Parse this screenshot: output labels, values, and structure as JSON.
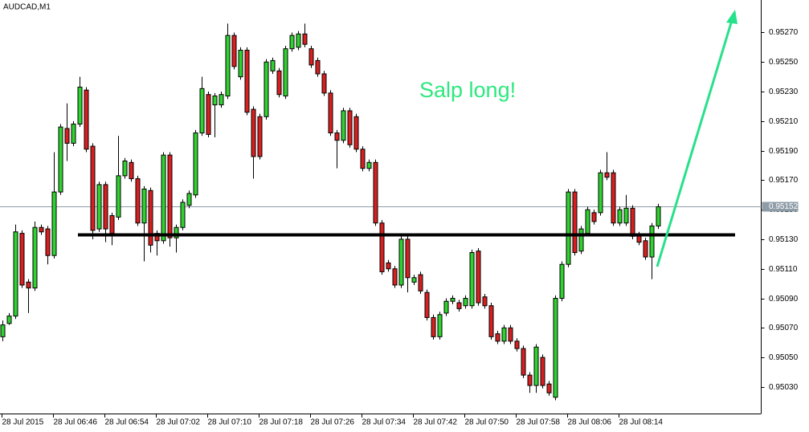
{
  "chart_data": {
    "type": "candlestick",
    "title": "AUDCAD,M1",
    "annotation": "Salp long!",
    "categories": [
      "28 Jul 2015",
      null,
      null,
      null,
      null,
      null,
      null,
      null,
      "28 Jul 06:46",
      null,
      null,
      null,
      null,
      null,
      null,
      null,
      "28 Jul 06:54",
      null,
      null,
      null,
      null,
      null,
      null,
      null,
      "28 Jul 07:02",
      null,
      null,
      null,
      null,
      null,
      null,
      null,
      "28 Jul 07:10",
      null,
      null,
      null,
      null,
      null,
      null,
      null,
      "28 Jul 07:18",
      null,
      null,
      null,
      null,
      null,
      null,
      null,
      "28 Jul 07:26",
      null,
      null,
      null,
      null,
      null,
      null,
      null,
      "28 Jul 07:34",
      null,
      null,
      null,
      null,
      null,
      null,
      null,
      "28 Jul 07:42",
      null,
      null,
      null,
      null,
      null,
      null,
      null,
      "28 Jul 07:50",
      null,
      null,
      null,
      null,
      null,
      null,
      null,
      "28 Jul 07:58",
      null,
      null,
      null,
      null,
      null,
      null,
      null,
      "28 Jul 08:06",
      null,
      null,
      null,
      null,
      null,
      null,
      null,
      "28 Jul 08:14",
      null,
      null,
      null,
      null,
      null,
      null
    ],
    "open": [
      0.95064,
      0.95073,
      0.95078,
      0.95134,
      0.95101,
      0.95097,
      0.95138,
      0.95137,
      0.95119,
      0.95162,
      0.95205,
      0.95195,
      0.95208,
      0.95231,
      0.95193,
      0.95137,
      0.95167,
      0.95146,
      0.95145,
      0.95173,
      0.95182,
      0.95171,
      0.95141,
      0.95163,
      0.95134,
      0.95129,
      0.95187,
      0.95131,
      0.95138,
      0.95153,
      0.9516,
      0.95202,
      0.95228,
      0.95221,
      0.95221,
      0.95227,
      0.95268,
      0.9524,
      0.95258,
      0.95218,
      0.95213,
      0.95213,
      0.95244,
      0.95244,
      0.95227,
      0.95259,
      0.9526,
      0.95269,
      0.95259,
      0.95251,
      0.95242,
      0.95229,
      0.95202,
      0.95197,
      0.95217,
      0.95213,
      0.95191,
      0.95178,
      0.95182,
      0.95141,
      0.95114,
      0.9511,
      0.95099,
      0.9513,
      0.95101,
      0.95106,
      0.95094,
      0.95077,
      0.95064,
      0.9508,
      0.95088,
      0.95087,
      0.95085,
      0.95085,
      0.95122,
      0.95091,
      0.95085,
      0.95066,
      0.95061,
      0.9507,
      0.95061,
      0.95056,
      0.95038,
      0.95031,
      0.9505,
      0.95032,
      0.95023,
      0.9509,
      0.95113,
      0.95162,
      0.95122,
      0.95134,
      0.95148,
      0.95148,
      0.95175,
      0.95175,
      0.95141,
      0.95141,
      0.95151,
      0.95133,
      0.95129,
      0.95118,
      0.95139
    ],
    "high": [
      0.95075,
      0.9508,
      0.9514,
      0.95136,
      0.95103,
      0.95142,
      0.9514,
      0.95139,
      0.95189,
      0.95208,
      0.95222,
      0.9521,
      0.9524,
      0.95233,
      0.95195,
      0.95169,
      0.95169,
      0.95148,
      0.952,
      0.95185,
      0.95184,
      0.95173,
      0.95166,
      0.95165,
      0.95136,
      0.95189,
      0.95189,
      0.9514,
      0.95157,
      0.95163,
      0.95204,
      0.9524,
      0.9523,
      0.95229,
      0.9523,
      0.95276,
      0.9527,
      0.9526,
      0.9526,
      0.9522,
      0.95215,
      0.95252,
      0.95253,
      0.95246,
      0.95261,
      0.9527,
      0.95271,
      0.95276,
      0.95261,
      0.95253,
      0.95244,
      0.95231,
      0.95204,
      0.95219,
      0.95219,
      0.95215,
      0.95193,
      0.95184,
      0.95184,
      0.95143,
      0.95116,
      0.95112,
      0.95132,
      0.95132,
      0.95106,
      0.95108,
      0.95096,
      0.95079,
      0.95081,
      0.9509,
      0.95092,
      0.95089,
      0.95092,
      0.95123,
      0.95124,
      0.95093,
      0.95087,
      0.95068,
      0.95072,
      0.95072,
      0.95063,
      0.95058,
      0.9504,
      0.95059,
      0.95052,
      0.95034,
      0.95092,
      0.95115,
      0.95164,
      0.95164,
      0.95139,
      0.95152,
      0.9515,
      0.95177,
      0.95189,
      0.95177,
      0.95152,
      0.9516,
      0.95153,
      0.95135,
      0.95131,
      0.95141,
      0.95154
    ],
    "low": [
      0.95061,
      0.95072,
      0.95076,
      0.95097,
      0.9508,
      0.95095,
      0.95133,
      0.95113,
      0.95117,
      0.9516,
      0.95183,
      0.95193,
      0.95206,
      0.95189,
      0.9513,
      0.95135,
      0.95128,
      0.95126,
      0.95143,
      0.95171,
      0.95169,
      0.95139,
      0.95115,
      0.95121,
      0.95119,
      0.95127,
      0.95125,
      0.95121,
      0.95136,
      0.95151,
      0.95158,
      0.952,
      0.95199,
      0.95199,
      0.95219,
      0.95225,
      0.95245,
      0.95238,
      0.95214,
      0.95171,
      0.95184,
      0.95211,
      0.95242,
      0.95226,
      0.95225,
      0.95257,
      0.95258,
      0.9526,
      0.95246,
      0.9524,
      0.95227,
      0.952,
      0.95178,
      0.95195,
      0.95192,
      0.95189,
      0.95176,
      0.95176,
      0.95139,
      0.95106,
      0.95108,
      0.95097,
      0.95097,
      0.95094,
      0.95099,
      0.95093,
      0.95075,
      0.95062,
      0.95062,
      0.95078,
      0.95086,
      0.95081,
      0.95083,
      0.95083,
      0.95085,
      0.95083,
      0.95062,
      0.95059,
      0.95059,
      0.95059,
      0.95054,
      0.95036,
      0.95026,
      0.95026,
      0.95029,
      0.95024,
      0.95021,
      0.95088,
      0.95111,
      0.95119,
      0.9512,
      0.95132,
      0.9514,
      0.95146,
      0.9517,
      0.95139,
      0.95139,
      0.95139,
      0.9513,
      0.95126,
      0.95116,
      0.95103,
      0.95137
    ],
    "close": [
      0.95072,
      0.95078,
      0.95135,
      0.95099,
      0.95097,
      0.95138,
      0.95135,
      0.95119,
      0.95162,
      0.95206,
      0.95195,
      0.95208,
      0.95233,
      0.95191,
      0.95136,
      0.95167,
      0.95137,
      0.95134,
      0.95173,
      0.95183,
      0.95171,
      0.95141,
      0.95164,
      0.95126,
      0.95129,
      0.95187,
      0.95131,
      0.95138,
      0.95155,
      0.95161,
      0.95202,
      0.95232,
      0.95201,
      0.95227,
      0.95228,
      0.95268,
      0.95247,
      0.95258,
      0.95216,
      0.95186,
      0.95186,
      0.9525,
      0.95251,
      0.95228,
      0.95259,
      0.95268,
      0.95269,
      0.95262,
      0.95248,
      0.95242,
      0.95229,
      0.95202,
      0.95197,
      0.95217,
      0.95194,
      0.95191,
      0.95178,
      0.95182,
      0.95141,
      0.95108,
      0.9511,
      0.95099,
      0.9513,
      0.95104,
      0.95104,
      0.95095,
      0.95077,
      0.95064,
      0.95079,
      0.95088,
      0.9509,
      0.95083,
      0.9509,
      0.95121,
      0.95087,
      0.95085,
      0.95064,
      0.95061,
      0.9507,
      0.95061,
      0.95056,
      0.95038,
      0.95031,
      0.95057,
      0.95031,
      0.95026,
      0.9509,
      0.95113,
      0.95162,
      0.95121,
      0.95137,
      0.9515,
      0.95142,
      0.95175,
      0.95172,
      0.95141,
      0.9515,
      0.95151,
      0.95132,
      0.95128,
      0.95118,
      0.95139,
      0.95152
    ],
    "up_color": "#2fd32f",
    "down_color": "#d91f1f",
    "support_level": 0.95133,
    "current_price": 0.95152,
    "ylim": [
      0.95012,
      0.95292
    ],
    "yticks": [
      {
        "value": 0.9503,
        "label": "0.95030"
      },
      {
        "value": 0.9505,
        "label": "0.95050"
      },
      {
        "value": 0.9507,
        "label": "0.95070"
      },
      {
        "value": 0.9509,
        "label": "0.95090"
      },
      {
        "value": 0.9511,
        "label": "0.95110"
      },
      {
        "value": 0.9513,
        "label": "0.95130"
      },
      {
        "value": 0.9515,
        "label": "0.95150"
      },
      {
        "value": 0.9517,
        "label": "0.95170"
      },
      {
        "value": 0.9519,
        "label": "0.95190"
      },
      {
        "value": 0.9521,
        "label": "0.95210"
      },
      {
        "value": 0.9523,
        "label": "0.95230"
      },
      {
        "value": 0.9525,
        "label": "0.95250"
      },
      {
        "value": 0.9527,
        "label": "0.95270"
      }
    ],
    "grid": false
  }
}
